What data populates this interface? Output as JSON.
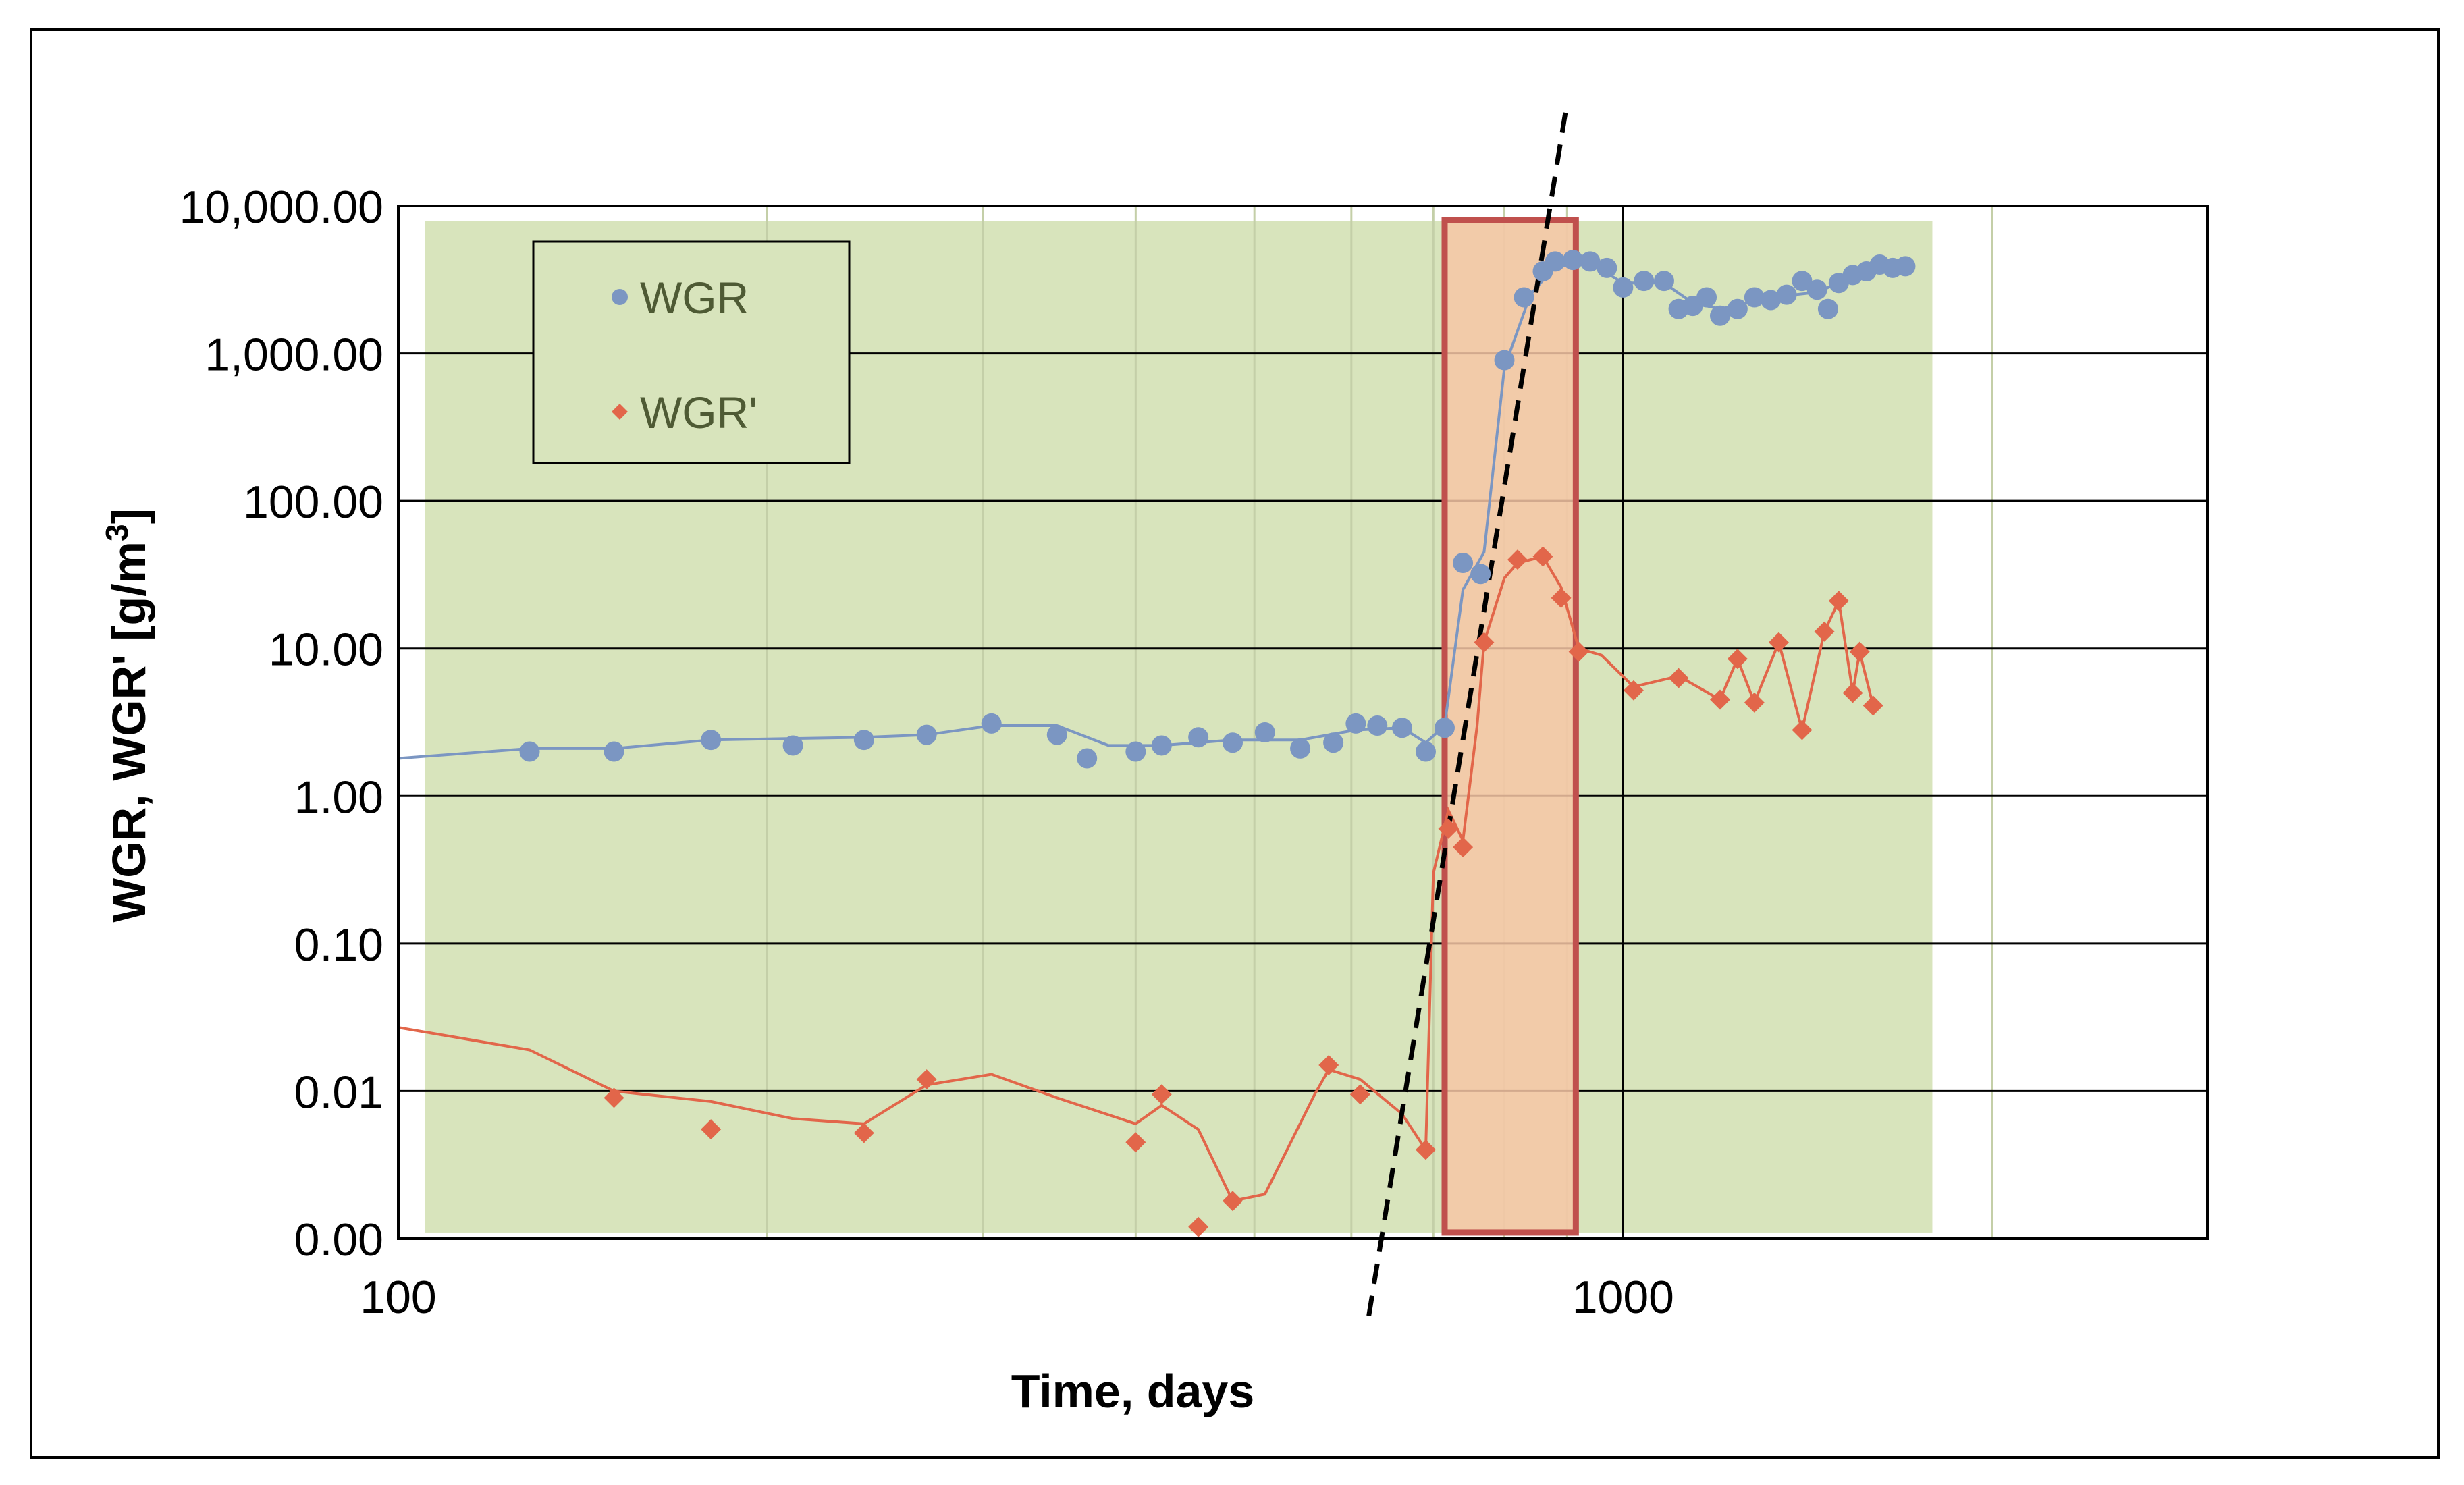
{
  "chart_data": {
    "type": "scatter",
    "title": "",
    "xlabel": "Time, days",
    "ylabel": "WGR, WGR' [g/m",
    "ylabel_sup": "3",
    "ylabel_end": "]",
    "x_scale": "log",
    "y_scale": "log",
    "xlim": [
      100,
      3000
    ],
    "ylim": [
      0.001,
      10000
    ],
    "x_ticks": [
      {
        "value": 100,
        "label": "100"
      },
      {
        "value": 1000,
        "label": "1000"
      }
    ],
    "y_ticks": [
      {
        "value": 0.001,
        "label": "0.00"
      },
      {
        "value": 0.01,
        "label": "0.01"
      },
      {
        "value": 0.1,
        "label": "0.10"
      },
      {
        "value": 1,
        "label": "1.00"
      },
      {
        "value": 10,
        "label": "10.00"
      },
      {
        "value": 100,
        "label": "100.00"
      },
      {
        "value": 1000,
        "label": "1,000.00"
      },
      {
        "value": 10000,
        "label": "10,000.00"
      }
    ],
    "grid": true,
    "legend": {
      "position": "top-left"
    },
    "colors": {
      "plot_background": "#d8e4bc",
      "grid": "#000000",
      "minor_grid": "#c4cfa8",
      "wgr": "#7b96c2",
      "wgr_prime": "#e2664a",
      "highlight_fill": "#f7c7a6",
      "highlight_border": "#c0504d",
      "trend_line": "#000000"
    },
    "series": [
      {
        "name": "WGR",
        "marker": "circle",
        "color": "#7b96c2",
        "points": [
          [
            128,
            2.0
          ],
          [
            150,
            2.0
          ],
          [
            180,
            2.4
          ],
          [
            210,
            2.2
          ],
          [
            240,
            2.4
          ],
          [
            270,
            2.6
          ],
          [
            305,
            3.1
          ],
          [
            345,
            2.6
          ],
          [
            365,
            1.8
          ],
          [
            400,
            2.0
          ],
          [
            420,
            2.2
          ],
          [
            450,
            2.5
          ],
          [
            480,
            2.3
          ],
          [
            510,
            2.7
          ],
          [
            545,
            2.1
          ],
          [
            580,
            2.3
          ],
          [
            605,
            3.1
          ],
          [
            630,
            3.0
          ],
          [
            660,
            2.9
          ],
          [
            690,
            2.0
          ],
          [
            715,
            2.9
          ],
          [
            740,
            38
          ],
          [
            765,
            32
          ],
          [
            800,
            900
          ],
          [
            830,
            2400
          ],
          [
            860,
            3600
          ],
          [
            880,
            4200
          ],
          [
            910,
            4300
          ],
          [
            940,
            4200
          ],
          [
            970,
            3800
          ],
          [
            1000,
            2800
          ],
          [
            1040,
            3100
          ],
          [
            1080,
            3100
          ],
          [
            1110,
            2000
          ],
          [
            1140,
            2100
          ],
          [
            1170,
            2400
          ],
          [
            1200,
            1800
          ],
          [
            1240,
            2000
          ],
          [
            1280,
            2400
          ],
          [
            1320,
            2300
          ],
          [
            1360,
            2500
          ],
          [
            1400,
            3100
          ],
          [
            1440,
            2700
          ],
          [
            1470,
            2000
          ],
          [
            1500,
            3000
          ],
          [
            1540,
            3400
          ],
          [
            1580,
            3600
          ],
          [
            1620,
            4000
          ],
          [
            1660,
            3800
          ],
          [
            1700,
            3900
          ]
        ],
        "trend": [
          [
            100,
            1.8
          ],
          [
            128,
            2.1
          ],
          [
            150,
            2.1
          ],
          [
            180,
            2.4
          ],
          [
            240,
            2.5
          ],
          [
            270,
            2.6
          ],
          [
            305,
            3.0
          ],
          [
            345,
            3.0
          ],
          [
            380,
            2.2
          ],
          [
            420,
            2.2
          ],
          [
            480,
            2.4
          ],
          [
            545,
            2.4
          ],
          [
            605,
            2.8
          ],
          [
            660,
            2.9
          ],
          [
            690,
            2.3
          ],
          [
            715,
            3.0
          ],
          [
            740,
            25
          ],
          [
            770,
            45
          ],
          [
            800,
            800
          ],
          [
            840,
            2500
          ],
          [
            880,
            3900
          ],
          [
            940,
            4100
          ],
          [
            1000,
            3000
          ],
          [
            1080,
            3000
          ],
          [
            1140,
            2200
          ],
          [
            1200,
            2000
          ],
          [
            1320,
            2400
          ],
          [
            1440,
            2600
          ],
          [
            1540,
            3300
          ],
          [
            1700,
            3900
          ]
        ]
      },
      {
        "name": "WGR'",
        "marker": "diamond",
        "color": "#e2664a",
        "points": [
          [
            150,
            0.009
          ],
          [
            180,
            0.0055
          ],
          [
            240,
            0.0052
          ],
          [
            270,
            0.012
          ],
          [
            400,
            0.0045
          ],
          [
            420,
            0.0095
          ],
          [
            450,
            0.0012
          ],
          [
            480,
            0.0018
          ],
          [
            575,
            0.015
          ],
          [
            610,
            0.0095
          ],
          [
            690,
            0.004
          ],
          [
            720,
            0.6
          ],
          [
            740,
            0.45
          ],
          [
            770,
            11
          ],
          [
            820,
            40
          ],
          [
            860,
            42
          ],
          [
            890,
            22
          ],
          [
            920,
            9.5
          ],
          [
            1020,
            5.2
          ],
          [
            1110,
            6.3
          ],
          [
            1200,
            4.5
          ],
          [
            1240,
            8.5
          ],
          [
            1280,
            4.3
          ],
          [
            1340,
            11
          ],
          [
            1400,
            2.8
          ],
          [
            1460,
            13
          ],
          [
            1500,
            21
          ],
          [
            1540,
            5.0
          ],
          [
            1560,
            9.5
          ],
          [
            1600,
            4.1
          ]
        ],
        "trend": [
          [
            100,
            0.027
          ],
          [
            128,
            0.019
          ],
          [
            150,
            0.01
          ],
          [
            180,
            0.0085
          ],
          [
            210,
            0.0065
          ],
          [
            240,
            0.006
          ],
          [
            270,
            0.011
          ],
          [
            305,
            0.013
          ],
          [
            345,
            0.009
          ],
          [
            400,
            0.006
          ],
          [
            420,
            0.008
          ],
          [
            450,
            0.0055
          ],
          [
            480,
            0.0018
          ],
          [
            510,
            0.002
          ],
          [
            560,
            0.0095
          ],
          [
            575,
            0.014
          ],
          [
            610,
            0.012
          ],
          [
            660,
            0.007
          ],
          [
            690,
            0.004
          ],
          [
            700,
            0.3
          ],
          [
            720,
            0.8
          ],
          [
            740,
            0.5
          ],
          [
            760,
            3
          ],
          [
            770,
            11
          ],
          [
            800,
            30
          ],
          [
            820,
            38
          ],
          [
            860,
            42
          ],
          [
            890,
            26
          ],
          [
            920,
            10
          ],
          [
            960,
            9
          ],
          [
            1020,
            5.5
          ],
          [
            1110,
            6.5
          ],
          [
            1200,
            4.5
          ],
          [
            1240,
            8.5
          ],
          [
            1280,
            4.3
          ],
          [
            1340,
            11
          ],
          [
            1400,
            2.8
          ],
          [
            1460,
            13
          ],
          [
            1500,
            21
          ],
          [
            1540,
            5.0
          ],
          [
            1560,
            9.5
          ],
          [
            1600,
            4.1
          ]
        ]
      }
    ],
    "annotations": {
      "highlight_box": {
        "x_from": 715,
        "x_to": 915,
        "y_from": 0.0011,
        "y_to": 8000
      },
      "trend_line": {
        "from": [
          620,
          0.0003
        ],
        "to": [
          900,
          50000
        ],
        "style": "dashed"
      }
    }
  }
}
